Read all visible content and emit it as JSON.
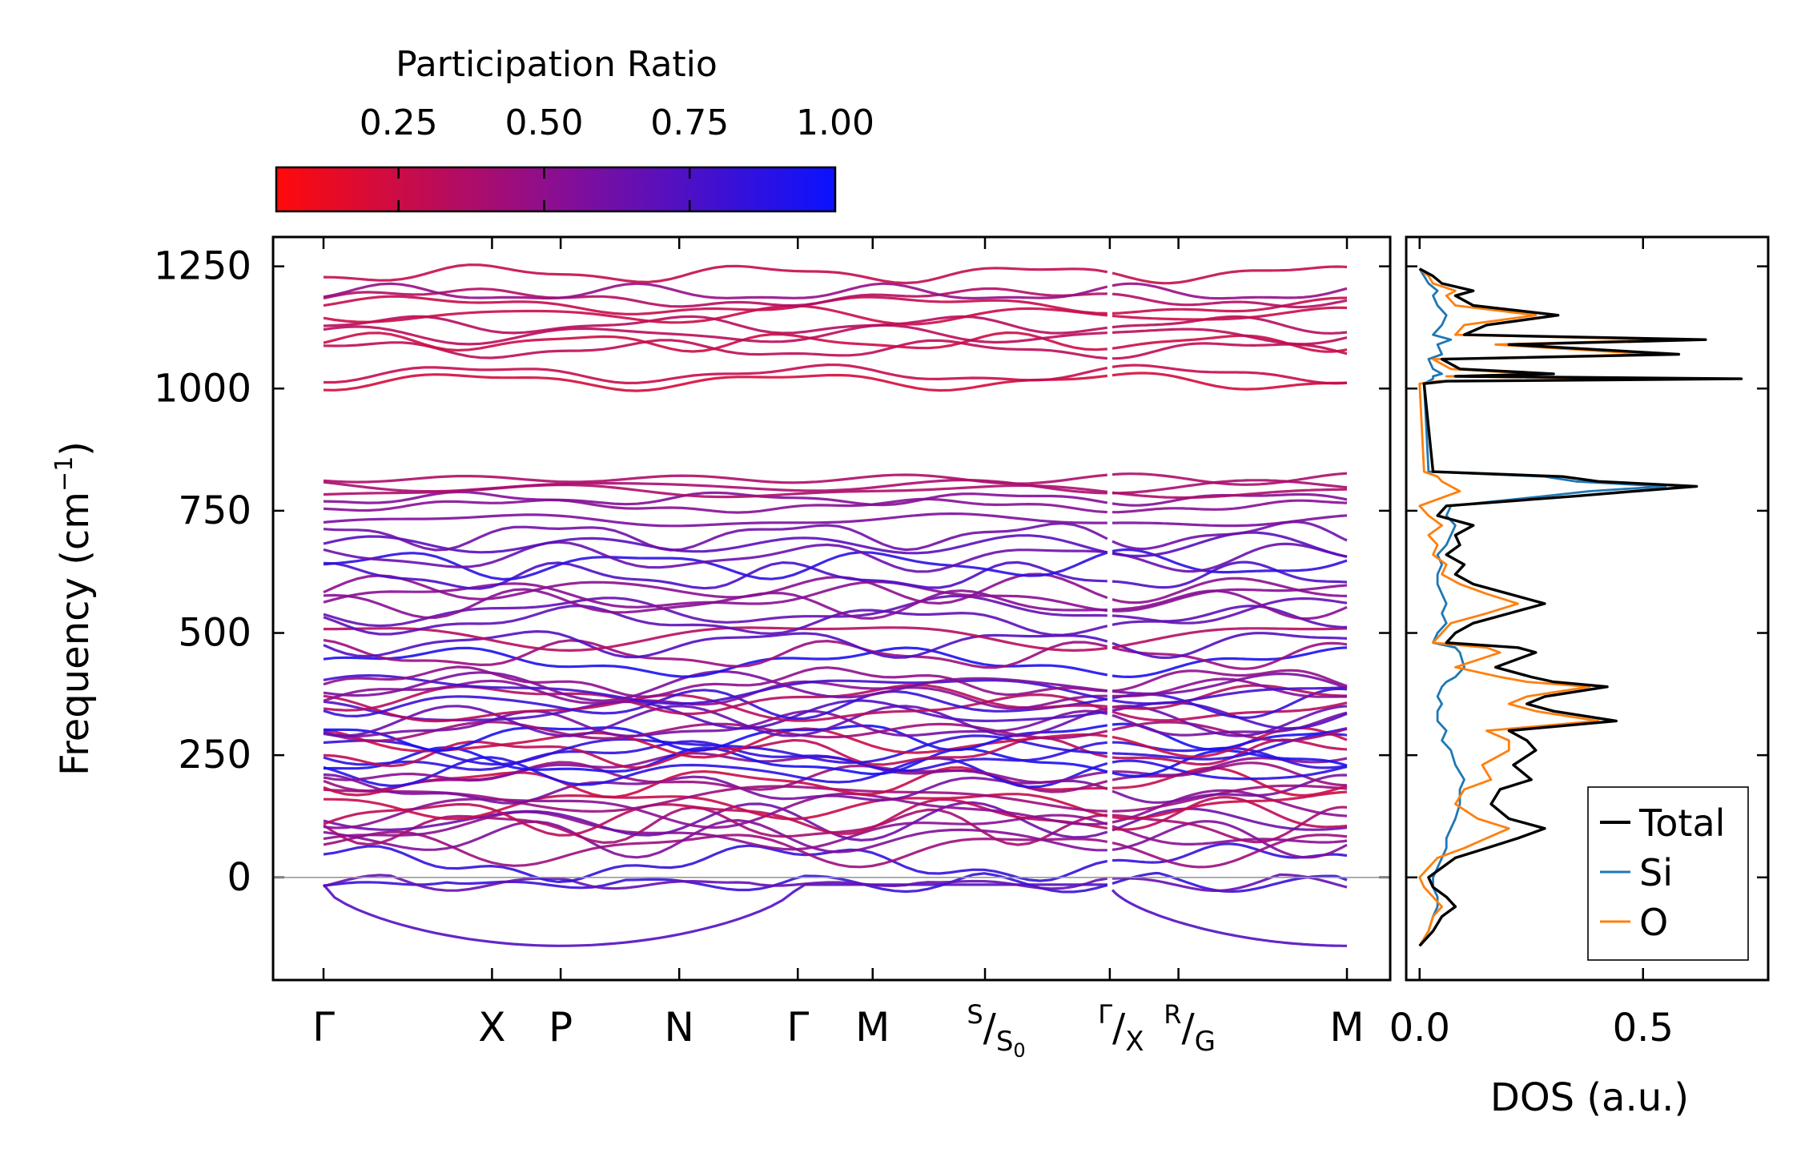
{
  "colorbar": {
    "title": "Participation Ratio",
    "ticks": [
      0.25,
      0.5,
      0.75,
      1.0
    ],
    "tick_labels": [
      "0.25",
      "0.50",
      "0.75",
      "1.00"
    ],
    "range": [
      0.04,
      1.0
    ],
    "color_low": "#ff0a0a",
    "color_mid": "#8a0e92",
    "color_high": "#0a12ff"
  },
  "chart_data": [
    {
      "type": "line",
      "name": "phonon-band-structure",
      "ylabel_main": "Frequency (cm",
      "ylabel_sup": "−1",
      "ylabel_close": ")",
      "ylim": [
        -210,
        1310
      ],
      "yticks": [
        0,
        250,
        500,
        750,
        1000,
        1250
      ],
      "ytick_labels": [
        "0",
        "250",
        "500",
        "750",
        "1000",
        "1250"
      ],
      "path_positions": [
        0,
        1.35,
        1.9,
        2.85,
        3.8,
        4.4,
        5.3,
        6.3,
        6.85,
        8.2
      ],
      "path_labels": [
        {
          "main": "Γ"
        },
        {
          "main": "X"
        },
        {
          "main": "P"
        },
        {
          "main": "N"
        },
        {
          "main": "Γ"
        },
        {
          "main": "M"
        },
        {
          "sup": "S",
          "sub_main": "S",
          "sub_sub": "0"
        },
        {
          "sup": "Γ",
          "sub_main": "X"
        },
        {
          "sup": "R",
          "sub_main": "G"
        },
        {
          "main": "M"
        }
      ],
      "segment_break_after": 7,
      "zero_line": 0,
      "band_frequencies_at_gamma": [
        -15,
        0,
        0,
        30,
        60,
        80,
        95,
        105,
        115,
        125,
        140,
        150,
        165,
        180,
        195,
        205,
        215,
        225,
        235,
        248,
        255,
        262,
        275,
        290,
        300,
        310,
        320,
        335,
        345,
        355,
        365,
        375,
        385,
        392,
        400,
        440,
        455,
        480,
        495,
        525,
        545,
        560,
        575,
        590,
        615,
        640,
        655,
        680,
        700,
        730,
        760,
        775,
        790,
        800,
        815,
        1015,
        1030,
        1080,
        1095,
        1110,
        1130,
        1150,
        1170,
        1185,
        1195,
        1235
      ],
      "notes": "Band energies estimated from image; color encodes participation ratio."
    },
    {
      "type": "line",
      "name": "phonon-dos",
      "xlabel": "DOS (a.u.)",
      "xlim": [
        -0.03,
        0.78
      ],
      "xticks": [
        0.0,
        0.5
      ],
      "xtick_labels": [
        "0.0",
        "0.5"
      ],
      "ylim": [
        -210,
        1310
      ],
      "legend_position": "lower-right",
      "series": [
        {
          "name": "Total",
          "color": "#000000",
          "freq": [
            -140,
            -110,
            -80,
            -60,
            -40,
            -20,
            0,
            20,
            40,
            60,
            80,
            100,
            120,
            150,
            180,
            200,
            230,
            260,
            280,
            300,
            320,
            340,
            355,
            370,
            390,
            400,
            410,
            430,
            460,
            470,
            480,
            500,
            520,
            540,
            560,
            580,
            600,
            620,
            640,
            660,
            680,
            700,
            720,
            740,
            760,
            780,
            790,
            800,
            810,
            820,
            830,
            1010,
            1015,
            1020,
            1025,
            1030,
            1040,
            1060,
            1070,
            1090,
            1100,
            1110,
            1130,
            1150,
            1170,
            1190,
            1200,
            1215,
            1230,
            1245
          ],
          "values": [
            0.0,
            0.03,
            0.05,
            0.08,
            0.06,
            0.03,
            0.02,
            0.05,
            0.08,
            0.15,
            0.22,
            0.28,
            0.2,
            0.16,
            0.18,
            0.25,
            0.21,
            0.26,
            0.24,
            0.2,
            0.44,
            0.3,
            0.24,
            0.28,
            0.42,
            0.3,
            0.25,
            0.17,
            0.26,
            0.22,
            0.06,
            0.08,
            0.12,
            0.2,
            0.28,
            0.2,
            0.12,
            0.08,
            0.1,
            0.06,
            0.09,
            0.08,
            0.12,
            0.04,
            0.06,
            0.35,
            0.48,
            0.62,
            0.4,
            0.32,
            0.03,
            0.01,
            0.06,
            0.72,
            0.08,
            0.3,
            0.09,
            0.05,
            0.58,
            0.2,
            0.64,
            0.1,
            0.15,
            0.31,
            0.12,
            0.08,
            0.12,
            0.05,
            0.03,
            0.0
          ]
        },
        {
          "name": "Si",
          "color": "#1f77b4",
          "freq": [
            -140,
            -110,
            -80,
            -60,
            -40,
            -20,
            0,
            20,
            40,
            60,
            80,
            100,
            120,
            150,
            180,
            200,
            230,
            260,
            280,
            300,
            320,
            340,
            355,
            370,
            390,
            400,
            410,
            430,
            460,
            470,
            480,
            500,
            520,
            540,
            560,
            580,
            600,
            620,
            640,
            660,
            680,
            700,
            720,
            740,
            760,
            780,
            790,
            800,
            810,
            820,
            830,
            1010,
            1015,
            1020,
            1025,
            1030,
            1040,
            1060,
            1070,
            1090,
            1100,
            1110,
            1130,
            1150,
            1170,
            1190,
            1200,
            1215,
            1230,
            1245
          ],
          "values": [
            0.0,
            0.02,
            0.03,
            0.04,
            0.04,
            0.03,
            0.03,
            0.04,
            0.05,
            0.06,
            0.06,
            0.07,
            0.08,
            0.09,
            0.09,
            0.1,
            0.08,
            0.07,
            0.05,
            0.06,
            0.04,
            0.04,
            0.05,
            0.04,
            0.05,
            0.06,
            0.08,
            0.1,
            0.09,
            0.08,
            0.03,
            0.04,
            0.06,
            0.05,
            0.06,
            0.05,
            0.04,
            0.04,
            0.05,
            0.04,
            0.06,
            0.07,
            0.08,
            0.06,
            0.07,
            0.28,
            0.38,
            0.55,
            0.35,
            0.28,
            0.02,
            0.01,
            0.02,
            0.03,
            0.03,
            0.05,
            0.03,
            0.02,
            0.05,
            0.04,
            0.07,
            0.03,
            0.05,
            0.06,
            0.04,
            0.03,
            0.04,
            0.02,
            0.01,
            0.0
          ]
        },
        {
          "name": "O",
          "color": "#ff7f0e",
          "freq": [
            -140,
            -110,
            -80,
            -60,
            -40,
            -20,
            0,
            20,
            40,
            60,
            80,
            100,
            120,
            150,
            180,
            200,
            230,
            260,
            280,
            300,
            320,
            340,
            355,
            370,
            390,
            400,
            410,
            430,
            460,
            470,
            480,
            500,
            520,
            540,
            560,
            580,
            600,
            620,
            640,
            660,
            680,
            700,
            720,
            740,
            760,
            780,
            790,
            800,
            810,
            820,
            830,
            1010,
            1015,
            1020,
            1025,
            1030,
            1040,
            1060,
            1070,
            1090,
            1100,
            1110,
            1130,
            1150,
            1170,
            1190,
            1200,
            1215,
            1230,
            1245
          ],
          "values": [
            0.0,
            0.02,
            0.03,
            0.05,
            0.03,
            0.01,
            0.0,
            0.02,
            0.04,
            0.1,
            0.15,
            0.2,
            0.13,
            0.08,
            0.1,
            0.16,
            0.14,
            0.2,
            0.2,
            0.15,
            0.4,
            0.26,
            0.2,
            0.24,
            0.38,
            0.24,
            0.18,
            0.08,
            0.18,
            0.15,
            0.03,
            0.05,
            0.07,
            0.15,
            0.22,
            0.15,
            0.09,
            0.05,
            0.06,
            0.03,
            0.04,
            0.02,
            0.05,
            0.02,
            0.0,
            0.06,
            0.09,
            0.07,
            0.05,
            0.04,
            0.01,
            0.0,
            0.04,
            0.57,
            0.06,
            0.26,
            0.07,
            0.03,
            0.52,
            0.17,
            0.57,
            0.08,
            0.1,
            0.26,
            0.08,
            0.06,
            0.08,
            0.03,
            0.02,
            0.0
          ]
        }
      ]
    }
  ]
}
